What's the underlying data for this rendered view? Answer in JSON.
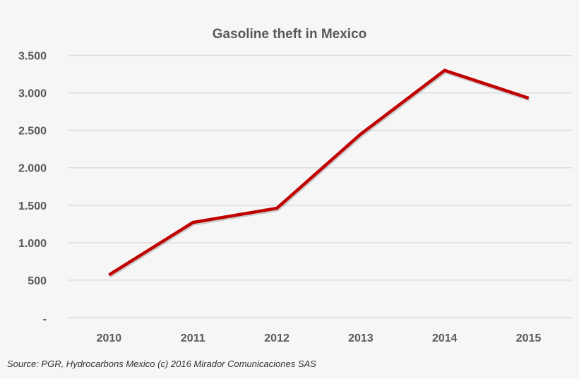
{
  "chart_data": {
    "type": "line",
    "title": "Gasoline theft in Mexico",
    "categories": [
      "2010",
      "2011",
      "2012",
      "2013",
      "2014",
      "2015"
    ],
    "series": [
      {
        "values": [
          570,
          1270,
          1460,
          2450,
          3300,
          2930
        ],
        "color": "#c00000"
      }
    ],
    "ylim": [
      0,
      3500
    ],
    "yticks": [
      0,
      500,
      1000,
      1500,
      2000,
      2500,
      3000,
      3500
    ],
    "ytick_labels": [
      "-",
      "500",
      "1.000",
      "1.500",
      "2.000",
      "2.500",
      "3.000",
      "3.500"
    ],
    "xlabel": "",
    "ylabel": "",
    "grid": "horizontal",
    "legend": "none"
  },
  "source": "Source: PGR, Hydrocarbons Mexico (c) 2016 Mirador Comunicaciones SAS"
}
